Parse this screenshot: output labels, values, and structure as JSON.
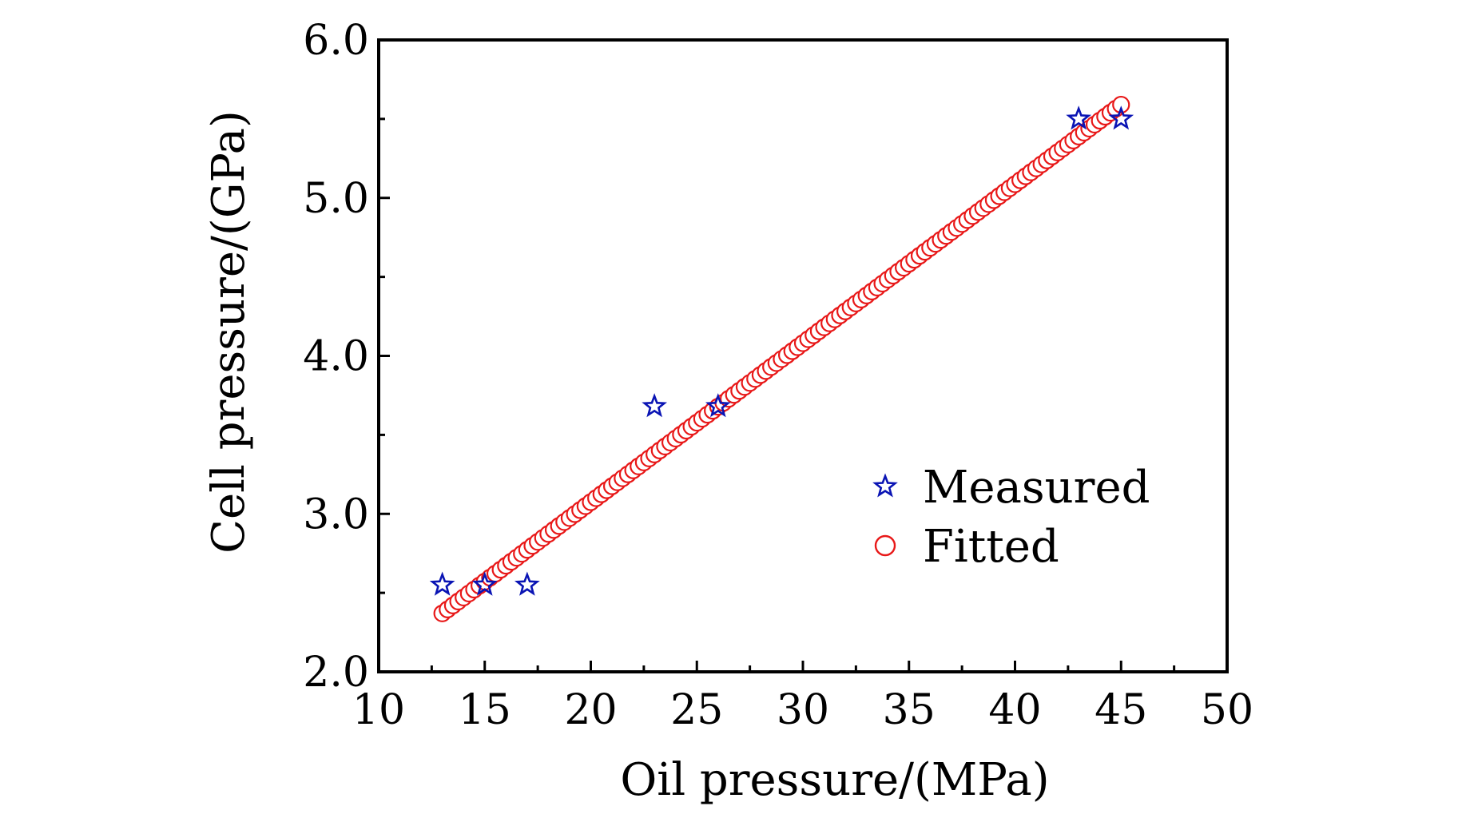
{
  "chart_data": {
    "type": "scatter",
    "title": "",
    "xlabel": "Oil pressure/(MPa)",
    "ylabel": "Cell pressure/(GPa)",
    "xlim": [
      10,
      50
    ],
    "ylim": [
      2.0,
      6.0
    ],
    "x_ticks": [
      10,
      15,
      20,
      25,
      30,
      35,
      40,
      45,
      50
    ],
    "x_tick_labels": [
      "10",
      "15",
      "20",
      "25",
      "30",
      "35",
      "40",
      "45",
      "50"
    ],
    "y_ticks": [
      2.0,
      3.0,
      4.0,
      5.0,
      6.0
    ],
    "y_tick_labels": [
      "2.0",
      "3.0",
      "4.0",
      "5.0",
      "6.0"
    ],
    "legend_position": "center-right",
    "series": [
      {
        "name": "Measured",
        "marker": "star",
        "color": "#0a14b4",
        "x": [
          13,
          15,
          17,
          23,
          26,
          43,
          45
        ],
        "y": [
          2.55,
          2.55,
          2.55,
          3.68,
          3.68,
          5.5,
          5.5
        ]
      },
      {
        "name": "Fitted",
        "marker": "circle",
        "color": "#e81818",
        "fit": {
          "kind": "linear",
          "x_start": 13,
          "x_end": 45,
          "step": 0.25,
          "y_at_start": 2.37,
          "y_at_end": 5.59
        }
      }
    ]
  }
}
